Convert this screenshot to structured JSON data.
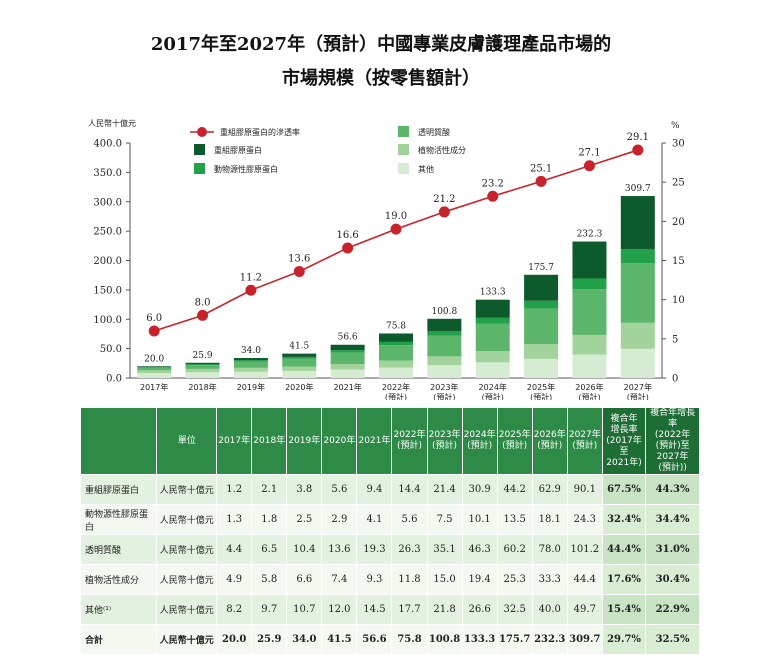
{
  "title": {
    "line1": "2017年至2027年（預計）中國專業皮膚護理產品市場的",
    "line2": "市場規模（按零售額計）"
  },
  "chart_data": {
    "type": "bar",
    "stacked": true,
    "left_axis_label": "人民幣十億元",
    "right_axis_label": "%",
    "left_ylim": [
      0,
      400
    ],
    "left_ticks": [
      "0.0",
      "50.0",
      "100.0",
      "150.0",
      "200.0",
      "250.0",
      "300.0",
      "350.0",
      "400.0"
    ],
    "right_ylim": [
      0,
      30
    ],
    "right_ticks": [
      "0",
      "5",
      "10",
      "15",
      "20",
      "25",
      "30"
    ],
    "categories": [
      {
        "year": "2017年",
        "note": ""
      },
      {
        "year": "2018年",
        "note": ""
      },
      {
        "year": "2019年",
        "note": ""
      },
      {
        "year": "2020年",
        "note": ""
      },
      {
        "year": "2021年",
        "note": ""
      },
      {
        "year": "2022年",
        "note": "(預計)"
      },
      {
        "year": "2023年",
        "note": "(預計)"
      },
      {
        "year": "2024年",
        "note": "(預計)"
      },
      {
        "year": "2025年",
        "note": "(預計)"
      },
      {
        "year": "2026年",
        "note": "(預計)"
      },
      {
        "year": "2027年",
        "note": "(預計)"
      }
    ],
    "series": [
      {
        "name": "其他",
        "color": "#d6ecd2",
        "values": [
          8.2,
          9.7,
          10.7,
          12.0,
          14.5,
          17.7,
          21.8,
          26.6,
          32.5,
          40.0,
          49.7
        ]
      },
      {
        "name": "植物活性成分",
        "color": "#a3d39c",
        "values": [
          4.9,
          5.8,
          6.6,
          7.4,
          9.3,
          11.8,
          15.0,
          19.4,
          25.3,
          33.3,
          44.4
        ]
      },
      {
        "name": "透明質酸",
        "color": "#5bb56a",
        "values": [
          4.4,
          6.5,
          10.4,
          13.6,
          19.3,
          26.3,
          35.1,
          46.3,
          60.2,
          78.0,
          101.2
        ]
      },
      {
        "name": "動物源性膠原蛋白",
        "color": "#23a04a",
        "values": [
          1.3,
          1.8,
          2.5,
          2.9,
          4.1,
          5.6,
          7.5,
          10.1,
          13.5,
          18.1,
          24.3
        ]
      },
      {
        "name": "重組膠原蛋白",
        "color": "#0d5a2c",
        "values": [
          1.2,
          2.1,
          3.8,
          5.6,
          9.4,
          14.4,
          21.4,
          30.9,
          44.2,
          62.9,
          90.1
        ]
      }
    ],
    "totals": [
      "20.0",
      "25.9",
      "34.0",
      "41.5",
      "56.6",
      "75.8",
      "100.8",
      "133.3",
      "175.7",
      "232.3",
      "309.7"
    ],
    "line_series": {
      "name": "重組膠原蛋白的滲透率",
      "color": "#c8232c",
      "axis": "right",
      "values": [
        6.0,
        8.0,
        11.2,
        13.6,
        16.6,
        19.0,
        21.2,
        23.2,
        25.1,
        27.1,
        29.1
      ],
      "labels": [
        "6.0",
        "8.0",
        "11.2",
        "13.6",
        "16.6",
        "19.0",
        "21.2",
        "23.2",
        "25.1",
        "27.1",
        "29.1"
      ]
    },
    "legend": {
      "line_label": "重組膠原蛋白的滲透率",
      "items": [
        "重組膠原蛋白",
        "動物源性膠原蛋白",
        "透明質酸",
        "植物活性成分",
        "其他"
      ]
    }
  },
  "table": {
    "headers": {
      "unit": "單位",
      "years": [
        [
          "2017年"
        ],
        [
          "2018年"
        ],
        [
          "2019年"
        ],
        [
          "2020年"
        ],
        [
          "2021年"
        ],
        [
          "2022年",
          "(預計)"
        ],
        [
          "2023年",
          "(預計)"
        ],
        [
          "2024年",
          "(預計)"
        ],
        [
          "2025年",
          "(預計)"
        ],
        [
          "2026年",
          "(預計)"
        ],
        [
          "2027年",
          "(預計)"
        ]
      ],
      "cagr1": [
        "複合年",
        "增長率",
        "(2017年",
        "至",
        "2021年)"
      ],
      "cagr2": [
        "複合年增長率",
        "(2022年",
        "(預計)至",
        "2027年",
        "(預計))"
      ]
    },
    "rows": [
      {
        "name": "重組膠原蛋白",
        "unit": "人民幣十億元",
        "values": [
          "1.2",
          "2.1",
          "3.8",
          "5.6",
          "9.4",
          "14.4",
          "21.4",
          "30.9",
          "44.2",
          "62.9",
          "90.1"
        ],
        "cagr1": "67.5%",
        "cagr2": "44.3%"
      },
      {
        "name": "動物源性膠原蛋白",
        "unit": "人民幣十億元",
        "values": [
          "1.3",
          "1.8",
          "2.5",
          "2.9",
          "4.1",
          "5.6",
          "7.5",
          "10.1",
          "13.5",
          "18.1",
          "24.3"
        ],
        "cagr1": "32.4%",
        "cagr2": "34.4%"
      },
      {
        "name": "透明質酸",
        "unit": "人民幣十億元",
        "values": [
          "4.4",
          "6.5",
          "10.4",
          "13.6",
          "19.3",
          "26.3",
          "35.1",
          "46.3",
          "60.2",
          "78.0",
          "101.2"
        ],
        "cagr1": "44.4%",
        "cagr2": "31.0%"
      },
      {
        "name": "植物活性成分",
        "unit": "人民幣十億元",
        "values": [
          "4.9",
          "5.8",
          "6.6",
          "7.4",
          "9.3",
          "11.8",
          "15.0",
          "19.4",
          "25.3",
          "33.3",
          "44.4"
        ],
        "cagr1": "17.6%",
        "cagr2": "30.4%"
      },
      {
        "name": "其他⁽¹⁾",
        "unit": "人民幣十億元",
        "values": [
          "8.2",
          "9.7",
          "10.7",
          "12.0",
          "14.5",
          "17.7",
          "21.8",
          "26.6",
          "32.5",
          "40.0",
          "49.7"
        ],
        "cagr1": "15.4%",
        "cagr2": "22.9%"
      },
      {
        "name": "合計",
        "unit": "人民幣十億元",
        "values": [
          "20.0",
          "25.9",
          "34.0",
          "41.5",
          "56.6",
          "75.8",
          "100.8",
          "133.3",
          "175.7",
          "232.3",
          "309.7"
        ],
        "cagr1": "29.7%",
        "cagr2": "32.5%",
        "total": true
      }
    ]
  }
}
